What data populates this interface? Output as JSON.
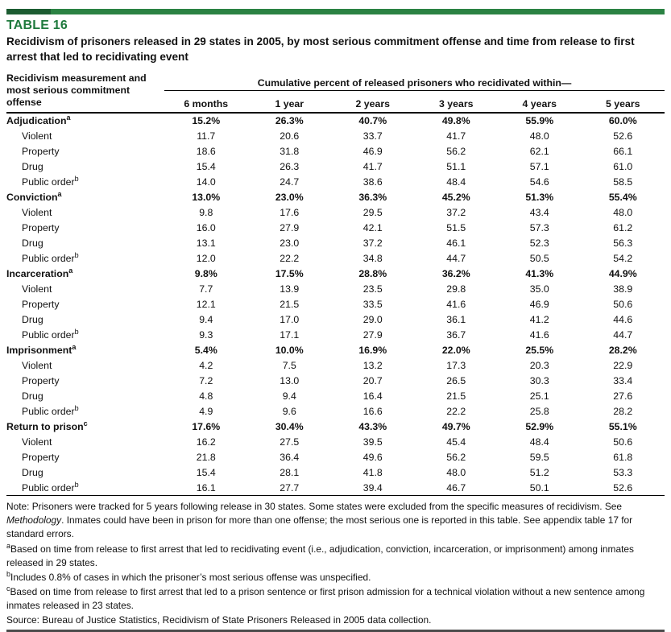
{
  "accent": {
    "bar_green": "#2b8243",
    "bar_green_dark": "#1c5c31",
    "label_green": "#1f7a3d"
  },
  "table_label": "TABLE 16",
  "title": "Recidivism of prisoners released in 29 states in 2005, by most serious commitment offense and time from release to first arrest that led to recidivating event",
  "table": {
    "stub_header": "Recidivism measurement and most serious commitment offense",
    "spanner": "Cumulative percent of released prisoners who recidivated within—",
    "columns": [
      "6 months",
      "1 year",
      "2 years",
      "3 years",
      "4 years",
      "5 years"
    ],
    "groups": [
      {
        "label": "Adjudication",
        "sup": "a",
        "values": [
          "15.2%",
          "26.3%",
          "40.7%",
          "49.8%",
          "55.9%",
          "60.0%"
        ],
        "rows": [
          {
            "label": "Violent",
            "sup": "",
            "values": [
              "11.7",
              "20.6",
              "33.7",
              "41.7",
              "48.0",
              "52.6"
            ]
          },
          {
            "label": "Property",
            "sup": "",
            "values": [
              "18.6",
              "31.8",
              "46.9",
              "56.2",
              "62.1",
              "66.1"
            ]
          },
          {
            "label": "Drug",
            "sup": "",
            "values": [
              "15.4",
              "26.3",
              "41.7",
              "51.1",
              "57.1",
              "61.0"
            ]
          },
          {
            "label": "Public order",
            "sup": "b",
            "values": [
              "14.0",
              "24.7",
              "38.6",
              "48.4",
              "54.6",
              "58.5"
            ]
          }
        ]
      },
      {
        "label": "Conviction",
        "sup": "a",
        "values": [
          "13.0%",
          "23.0%",
          "36.3%",
          "45.2%",
          "51.3%",
          "55.4%"
        ],
        "rows": [
          {
            "label": "Violent",
            "sup": "",
            "values": [
              "9.8",
              "17.6",
              "29.5",
              "37.2",
              "43.4",
              "48.0"
            ]
          },
          {
            "label": "Property",
            "sup": "",
            "values": [
              "16.0",
              "27.9",
              "42.1",
              "51.5",
              "57.3",
              "61.2"
            ]
          },
          {
            "label": "Drug",
            "sup": "",
            "values": [
              "13.1",
              "23.0",
              "37.2",
              "46.1",
              "52.3",
              "56.3"
            ]
          },
          {
            "label": "Public order",
            "sup": "b",
            "values": [
              "12.0",
              "22.2",
              "34.8",
              "44.7",
              "50.5",
              "54.2"
            ]
          }
        ]
      },
      {
        "label": "Incarceration",
        "sup": "a",
        "values": [
          "9.8%",
          "17.5%",
          "28.8%",
          "36.2%",
          "41.3%",
          "44.9%"
        ],
        "rows": [
          {
            "label": "Violent",
            "sup": "",
            "values": [
              "7.7",
              "13.9",
              "23.5",
              "29.8",
              "35.0",
              "38.9"
            ]
          },
          {
            "label": "Property",
            "sup": "",
            "values": [
              "12.1",
              "21.5",
              "33.5",
              "41.6",
              "46.9",
              "50.6"
            ]
          },
          {
            "label": "Drug",
            "sup": "",
            "values": [
              "9.4",
              "17.0",
              "29.0",
              "36.1",
              "41.2",
              "44.6"
            ]
          },
          {
            "label": "Public order",
            "sup": "b",
            "values": [
              "9.3",
              "17.1",
              "27.9",
              "36.7",
              "41.6",
              "44.7"
            ]
          }
        ]
      },
      {
        "label": "Imprisonment",
        "sup": "a",
        "values": [
          "5.4%",
          "10.0%",
          "16.9%",
          "22.0%",
          "25.5%",
          "28.2%"
        ],
        "rows": [
          {
            "label": "Violent",
            "sup": "",
            "values": [
              "4.2",
              "7.5",
              "13.2",
              "17.3",
              "20.3",
              "22.9"
            ]
          },
          {
            "label": "Property",
            "sup": "",
            "values": [
              "7.2",
              "13.0",
              "20.7",
              "26.5",
              "30.3",
              "33.4"
            ]
          },
          {
            "label": "Drug",
            "sup": "",
            "values": [
              "4.8",
              "9.4",
              "16.4",
              "21.5",
              "25.1",
              "27.6"
            ]
          },
          {
            "label": "Public order",
            "sup": "b",
            "values": [
              "4.9",
              "9.6",
              "16.6",
              "22.2",
              "25.8",
              "28.2"
            ]
          }
        ]
      },
      {
        "label": "Return to prison",
        "sup": "c",
        "values": [
          "17.6%",
          "30.4%",
          "43.3%",
          "49.7%",
          "52.9%",
          "55.1%"
        ],
        "rows": [
          {
            "label": "Violent",
            "sup": "",
            "values": [
              "16.2",
              "27.5",
              "39.5",
              "45.4",
              "48.4",
              "50.6"
            ]
          },
          {
            "label": "Property",
            "sup": "",
            "values": [
              "21.8",
              "36.4",
              "49.6",
              "56.2",
              "59.5",
              "61.8"
            ]
          },
          {
            "label": "Drug",
            "sup": "",
            "values": [
              "15.4",
              "28.1",
              "41.8",
              "48.0",
              "51.2",
              "53.3"
            ]
          },
          {
            "label": "Public order",
            "sup": "b",
            "values": [
              "16.1",
              "27.7",
              "39.4",
              "46.7",
              "50.1",
              "52.6"
            ]
          }
        ]
      }
    ]
  },
  "note": {
    "part1": "Note: Prisoners were tracked for 5 years following release in 30 states. Some states were excluded from the specific measures of recidivism. See ",
    "italic": "Methodology",
    "part2": ". Inmates could have been in prison for more than one offense; the most serious one is reported in this table. See appendix table 17 for standard errors."
  },
  "footnotes": [
    {
      "sup": "a",
      "text": "Based on time from release to first arrest that led to recidivating event (i.e., adjudication, conviction, incarceration, or imprisonment) among inmates released in 29 states."
    },
    {
      "sup": "b",
      "text": "Includes 0.8% of cases in which the prisoner’s most serious offense was unspecified."
    },
    {
      "sup": "c",
      "text": "Based on time from release to first arrest that led to a prison sentence or first prison admission for a technical violation without a new sentence among inmates released in 23 states."
    }
  ],
  "source": "Source: Bureau of Justice Statistics, Recidivism of State Prisoners Released in 2005 data collection."
}
